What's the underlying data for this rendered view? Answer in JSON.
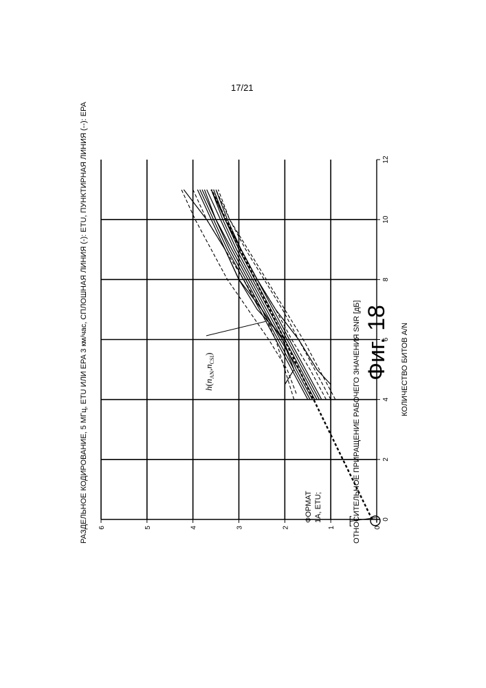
{
  "page_number": "17/21",
  "figure_caption": "Фиг. 18",
  "chart_data": {
    "type": "line",
    "title": "РАЗДЕЛЬНОЕ КОДИРОВАНИЕ, 5 МГц, ETU ИЛИ EPA 3 км/час, СПЛОШНАЯ ЛИНИЯ (-): ETU, ПУНКТИРНАЯ ЛИНИЯ (--): EPA",
    "xlabel": "КОЛИЧЕСТВО БИТОВ A/N",
    "ylabel": "ОТНОСИТЕЛЬНОЕ ПРИРАЩЕНИЕ РАБОЧЕГО ЗНАЧЕНИЯ SNR [дБ]",
    "xlim": [
      0,
      12
    ],
    "ylim": [
      0,
      6
    ],
    "x_ticks": [
      "0",
      "2",
      "4",
      "6",
      "8",
      "10",
      "12"
    ],
    "y_ticks": [
      "0",
      "1",
      "2",
      "3",
      "4",
      "5",
      "6"
    ],
    "grid": true,
    "orientation": "rotated 90° counter-clockwise on page",
    "annotations": {
      "curve_label": "h",
      "curve_label_sub1": "n",
      "curve_label_sub1_idx": "AN",
      "curve_label_sub2": "n",
      "curve_label_sub2_idx": "CSI",
      "format_label_line1": "ФОРМАТ",
      "format_label_line2": "1А, ETU;"
    },
    "reference_point": {
      "x": 0,
      "y": 0
    },
    "fit_line": {
      "name": "h(nAN,nCSI)",
      "style": "dashed-bold",
      "x": [
        0,
        11
      ],
      "y": [
        0.1,
        3.6
      ]
    },
    "series": [
      {
        "style": "solid",
        "x": [
          4,
          5,
          6,
          7,
          8,
          9,
          10,
          11
        ],
        "y": [
          1.3,
          1.65,
          2.0,
          2.35,
          2.7,
          3.05,
          3.35,
          3.6
        ]
      },
      {
        "style": "solid",
        "x": [
          4,
          5,
          6,
          7,
          8,
          9,
          10,
          11
        ],
        "y": [
          1.4,
          1.75,
          2.05,
          2.4,
          2.75,
          3.1,
          3.4,
          3.7
        ]
      },
      {
        "style": "solid",
        "x": [
          4,
          5,
          6,
          7,
          8,
          9,
          10,
          11
        ],
        "y": [
          1.35,
          1.7,
          2.1,
          2.45,
          2.8,
          3.15,
          3.5,
          3.75
        ]
      },
      {
        "style": "solid",
        "x": [
          4,
          5,
          6,
          7,
          8,
          9,
          10,
          11
        ],
        "y": [
          1.25,
          1.6,
          1.95,
          2.3,
          2.65,
          3.0,
          3.3,
          3.55
        ]
      },
      {
        "style": "solid",
        "x": [
          4,
          5,
          6,
          7,
          8,
          9,
          10,
          11
        ],
        "y": [
          1.45,
          1.8,
          2.15,
          2.5,
          2.85,
          3.2,
          3.5,
          3.8
        ]
      },
      {
        "style": "solid",
        "x": [
          4,
          5,
          6,
          7,
          8,
          9,
          10,
          11
        ],
        "y": [
          1.5,
          1.85,
          2.2,
          2.55,
          2.9,
          3.25,
          3.55,
          3.85
        ]
      },
      {
        "style": "solid",
        "x": [
          4,
          5,
          6,
          7,
          8,
          9,
          10,
          11
        ],
        "y": [
          1.2,
          1.55,
          1.9,
          2.25,
          2.6,
          2.95,
          3.25,
          3.5
        ]
      },
      {
        "style": "solid",
        "x": [
          4,
          4.5,
          5,
          6,
          7,
          8,
          9,
          10,
          11
        ],
        "y": [
          2.0,
          2.0,
          1.8,
          2.05,
          2.5,
          3.0,
          3.3,
          3.6,
          3.9
        ]
      },
      {
        "style": "solid",
        "x": [
          4.5,
          5,
          6,
          7,
          8,
          9,
          10,
          11
        ],
        "y": [
          1.0,
          1.3,
          1.7,
          2.2,
          2.6,
          2.95,
          3.3,
          3.6
        ]
      },
      {
        "style": "solid",
        "x": [
          6,
          7,
          8,
          9,
          10,
          11
        ],
        "y": [
          2.0,
          2.6,
          3.0,
          3.3,
          3.7,
          4.2
        ]
      },
      {
        "style": "dashed",
        "x": [
          4,
          5,
          6,
          7,
          8,
          9,
          10,
          11
        ],
        "y": [
          0.9,
          1.25,
          1.6,
          2.0,
          2.4,
          2.8,
          3.2,
          3.5
        ]
      },
      {
        "style": "dashed",
        "x": [
          4,
          5,
          6,
          7,
          8,
          9,
          10,
          11
        ],
        "y": [
          1.0,
          1.35,
          1.7,
          2.05,
          2.45,
          2.85,
          3.2,
          3.45
        ]
      },
      {
        "style": "dashed",
        "x": [
          4,
          5,
          6,
          7,
          8,
          9,
          10,
          11
        ],
        "y": [
          1.8,
          2.0,
          2.2,
          2.5,
          2.9,
          3.3,
          3.7,
          4.0
        ]
      },
      {
        "style": "dashed",
        "x": [
          4.2,
          5,
          6,
          7,
          8,
          9,
          10,
          11
        ],
        "y": [
          1.75,
          1.95,
          2.35,
          2.8,
          3.25,
          3.6,
          3.95,
          4.25
        ]
      },
      {
        "style": "dashed",
        "x": [
          4,
          5,
          6,
          7,
          8,
          9,
          10,
          11
        ],
        "y": [
          1.1,
          1.45,
          1.85,
          2.2,
          2.6,
          2.95,
          3.3,
          3.55
        ]
      }
    ]
  }
}
